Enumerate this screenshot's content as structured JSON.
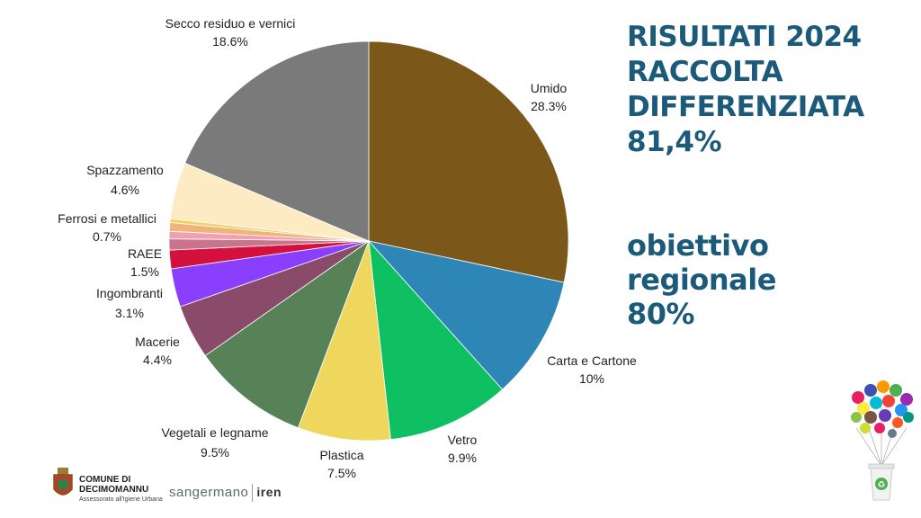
{
  "headline": {
    "lines": [
      "RISULTATI 2024",
      "RACCOLTA",
      "DIFFERENZIATA",
      "81,4%"
    ]
  },
  "goal": {
    "lines": [
      "obiettivo",
      "regionale",
      "80%"
    ]
  },
  "footer": {
    "comune_line1": "COMUNE DI",
    "comune_line2": "DECIMOMANNU",
    "comune_sub": "Assessorato all'Igiene Urbana",
    "sponsor1": "sangermano",
    "sponsor2": "iren"
  },
  "icons": [
    "coat-of-arms-icon",
    "balloons-recycling-bin-icon"
  ],
  "chart_data": {
    "type": "pie",
    "slices": [
      {
        "name": "Umido",
        "value": 28.3,
        "label": "28.3%",
        "color": "#7b581a"
      },
      {
        "name": "Carta e Cartone",
        "value": 10,
        "label": "10%",
        "color": "#2e86b7"
      },
      {
        "name": "Vetro",
        "value": 9.9,
        "label": "9.9%",
        "color": "#0fc063"
      },
      {
        "name": "Plastica",
        "value": 7.5,
        "label": "7.5%",
        "color": "#efd75e"
      },
      {
        "name": "Vegetali e legname",
        "value": 9.5,
        "label": "9.5%",
        "color": "#578156"
      },
      {
        "name": "Macerie",
        "value": 4.4,
        "label": "4.4%",
        "color": "#8a4a6a"
      },
      {
        "name": "Ingombranti",
        "value": 3.1,
        "label": "3.1%",
        "color": "#8a3fff"
      },
      {
        "name": "RAEE",
        "value": 1.5,
        "label": "1.5%",
        "color": "#d3113c"
      },
      {
        "name": "",
        "value": 0.9,
        "label": "",
        "color": "#c9748a"
      },
      {
        "name": "",
        "value": 0.6,
        "label": "",
        "color": "#f0a0b0"
      },
      {
        "name": "Ferrosi e metallici",
        "value": 0.7,
        "label": "0.7%",
        "color": "#f0b37a"
      },
      {
        "name": "",
        "value": 0.3,
        "label": "",
        "color": "#f5d060"
      },
      {
        "name": "Spazzamento",
        "value": 4.6,
        "label": "4.6%",
        "color": "#fdebc4"
      },
      {
        "name": "Secco residuo e vernici",
        "value": 18.6,
        "label": "18.6%",
        "color": "#7a7a7a"
      }
    ]
  }
}
